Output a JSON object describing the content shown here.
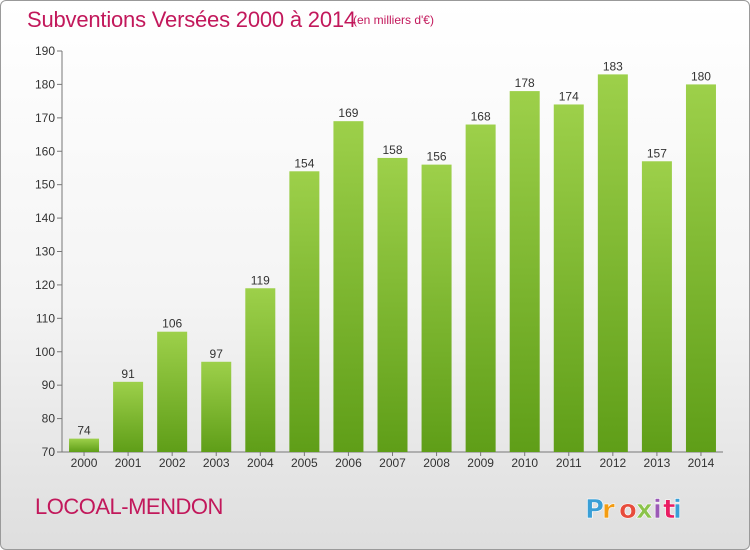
{
  "title": "Subventions Versées 2000 à 2014",
  "unit": "(en milliers d'€)",
  "commune": "LOCOAL-MENDON",
  "logo": {
    "text": "Proxiti",
    "colors": [
      "#3a9fd6",
      "#f39c12",
      "#e74c3c",
      "#8bc34a",
      "#9b59b6",
      "#e91e63",
      "#3a9fd6"
    ]
  },
  "colors": {
    "bar_top": "#9dd04a",
    "bar_bottom": "#5f9e18",
    "title": "#c2185b"
  },
  "chart_data": {
    "type": "bar",
    "title": "Subventions Versées 2000 à 2014",
    "subtitle": "(en milliers d'€)",
    "categories": [
      "2000",
      "2001",
      "2002",
      "2003",
      "2004",
      "2005",
      "2006",
      "2007",
      "2008",
      "2009",
      "2010",
      "2011",
      "2012",
      "2013",
      "2014"
    ],
    "values": [
      74,
      91,
      106,
      97,
      119,
      154,
      169,
      158,
      156,
      168,
      178,
      174,
      183,
      157,
      180
    ],
    "ylim": [
      70,
      190
    ],
    "yticks": [
      70,
      80,
      90,
      100,
      110,
      120,
      130,
      140,
      150,
      160,
      170,
      180,
      190
    ],
    "grid": false,
    "data_labels": true,
    "xlabel": "",
    "ylabel": ""
  }
}
